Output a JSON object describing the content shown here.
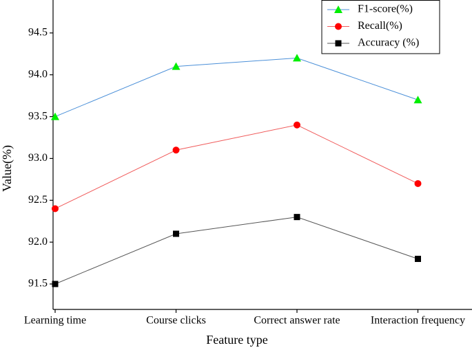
{
  "chart_data": {
    "type": "line",
    "xlabel": "Feature type",
    "ylabel": "Value(%)",
    "categories": [
      "Learning time",
      "Course clicks",
      "Correct answer rate",
      "Interaction frequency"
    ],
    "series": [
      {
        "name": "F1-score(%)",
        "color": "#4a8fd8",
        "marker_color": "#00ee00",
        "marker": "triangle",
        "values": [
          93.5,
          94.1,
          94.2,
          93.7
        ]
      },
      {
        "name": "Recall(%)",
        "color": "#f05a5a",
        "marker_color": "#ff0000",
        "marker": "circle",
        "values": [
          92.4,
          93.1,
          93.4,
          92.7
        ]
      },
      {
        "name": "Accuracy (%)",
        "color": "#555555",
        "marker_color": "#000000",
        "marker": "square",
        "values": [
          91.5,
          92.1,
          92.3,
          91.8
        ]
      }
    ],
    "ylim": [
      91.2,
      94.85
    ],
    "yticks": [
      91.5,
      {
        "value": 92,
        "label": "92.0"
      },
      92.5,
      {
        "value": 93,
        "label": "93.0"
      },
      93.5,
      {
        "value": 94,
        "label": "94.0"
      },
      94.5
    ],
    "legend": "upper right"
  }
}
